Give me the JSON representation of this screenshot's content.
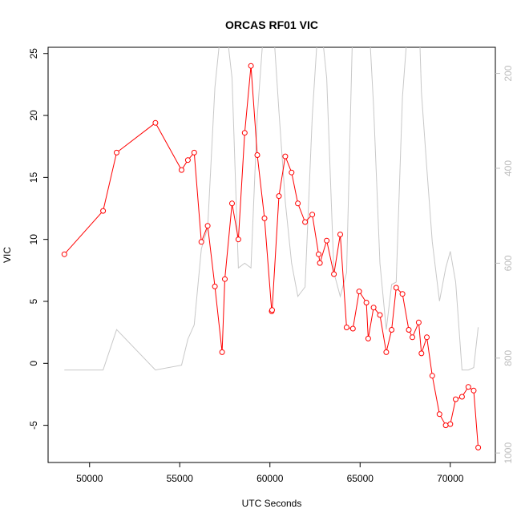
{
  "chart_data": {
    "type": "line",
    "title": "ORCAS RF01 VIC",
    "xlabel": "UTC Seconds",
    "ylabel": "VIC",
    "xlim": [
      47700,
      72500
    ],
    "ylim": [
      -8,
      25.5
    ],
    "x_ticks": [
      50000,
      55000,
      60000,
      65000,
      70000
    ],
    "y_ticks": [
      -5,
      0,
      5,
      10,
      15,
      20,
      25
    ],
    "y2_lim": [
      1020,
      145
    ],
    "y2_ticks": [
      200,
      400,
      600,
      800,
      1000
    ],
    "grid": false,
    "legend": "none",
    "series": [
      {
        "color": "#ff0000",
        "marker": "open-circle",
        "x": [
          48600,
          50750,
          51500,
          53650,
          55100,
          55450,
          55800,
          56200,
          56550,
          56950,
          57350,
          57500,
          57900,
          58250,
          58600,
          58950,
          59300,
          59700,
          60100,
          60120,
          60500,
          60850,
          61200,
          61550,
          61950,
          62350,
          62700,
          62770,
          63150,
          63550,
          63900,
          64250,
          64600,
          64950,
          65350,
          65450,
          65750,
          66100,
          66450,
          66750,
          67000,
          67350,
          67700,
          67900,
          68250,
          68400,
          68700,
          69000,
          69400,
          69750,
          70000,
          70300,
          70650,
          71000,
          71300,
          71550
        ],
        "y": [
          8.8,
          12.3,
          17.0,
          19.4,
          15.6,
          16.4,
          17.0,
          9.8,
          11.1,
          6.2,
          0.9,
          6.8,
          12.9,
          10.0,
          18.6,
          24.0,
          16.8,
          11.7,
          4.2,
          4.3,
          13.5,
          16.7,
          15.4,
          12.9,
          11.4,
          12.0,
          8.8,
          8.1,
          9.9,
          7.2,
          10.4,
          2.9,
          2.8,
          5.8,
          4.9,
          2.0,
          4.5,
          3.9,
          0.9,
          2.7,
          6.1,
          5.6,
          2.7,
          2.1,
          3.3,
          0.8,
          2.1,
          -1.0,
          -4.1,
          -5.0,
          -4.9,
          -2.9,
          -2.7,
          -1.9,
          -2.2,
          -6.8
        ]
      },
      {
        "color": "#c8c8c8",
        "axis": "right",
        "x": [
          48600,
          50750,
          51500,
          53650,
          55100,
          55450,
          55800,
          56200,
          56550,
          56950,
          57350,
          57500,
          57900,
          58250,
          58600,
          58950,
          59300,
          59700,
          60100,
          60120,
          60500,
          60850,
          61200,
          61550,
          61950,
          62350,
          62700,
          62770,
          63150,
          63550,
          63900,
          64250,
          64600,
          64950,
          65350,
          65450,
          65750,
          66100,
          66450,
          66750,
          67000,
          67350,
          67700,
          67900,
          68250,
          68400,
          68700,
          69000,
          69400,
          69750,
          70000,
          70300,
          70650,
          71000,
          71300,
          71550
        ],
        "y": [
          825,
          825,
          740,
          825,
          815,
          760,
          730,
          570,
          525,
          230,
          80,
          75,
          210,
          610,
          600,
          610,
          290,
          80,
          55,
          60,
          280,
          470,
          600,
          670,
          650,
          290,
          80,
          70,
          210,
          620,
          670,
          620,
          80,
          65,
          55,
          60,
          270,
          600,
          740,
          645,
          640,
          250,
          70,
          60,
          60,
          240,
          400,
          555,
          680,
          610,
          575,
          640,
          825,
          825,
          820,
          735
        ]
      }
    ]
  }
}
